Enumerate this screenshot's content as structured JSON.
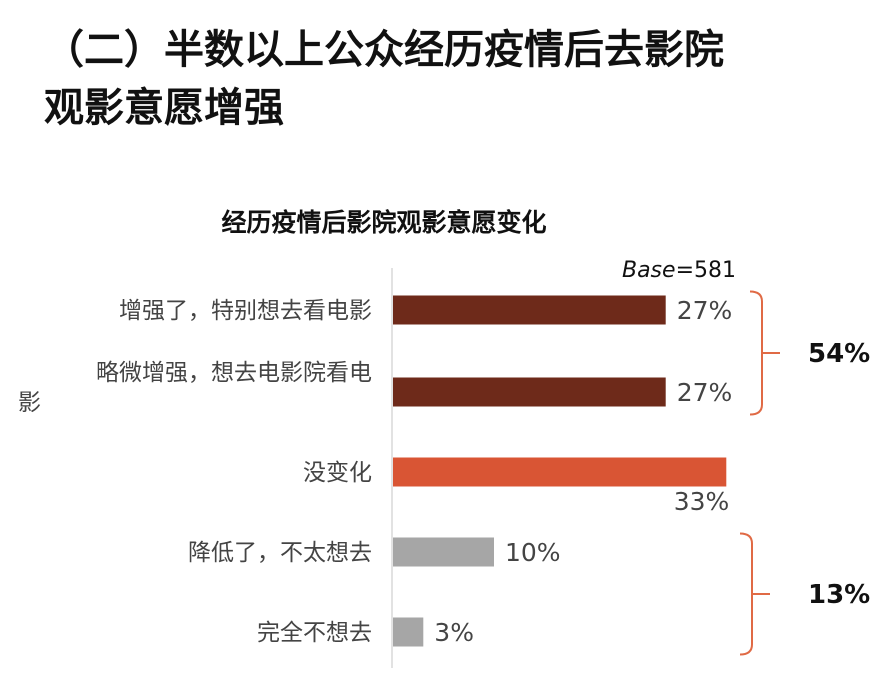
{
  "heading": {
    "line1": "（二）半数以上公众经历疫情后去影院",
    "line2": "观影意愿增强"
  },
  "colors": {
    "dark_red": "#6E2A1A",
    "orange": "#D95534",
    "grey": "#A6A6A6",
    "bracket": "#E06A45",
    "axis": "#D9D9D9"
  },
  "chart_data": {
    "type": "bar",
    "orientation": "horizontal",
    "title": "经历疫情后影院观影意愿变化",
    "base": {
      "label": "Base",
      "value": "=581"
    },
    "xlim": [
      0,
      40
    ],
    "categories": [
      [
        "增强了，特别想去看电影"
      ],
      [
        "略微增强，想去电影院看电",
        "影"
      ],
      [
        "没变化"
      ],
      [
        "降低了，不太想去"
      ],
      [
        "完全不想去"
      ]
    ],
    "values": [
      27,
      27,
      33,
      10,
      3
    ],
    "value_labels": [
      "27%",
      "27%",
      "33%",
      "10%",
      "3%"
    ],
    "bar_colors": [
      "#6E2A1A",
      "#6E2A1A",
      "#D95534",
      "#A6A6A6",
      "#A6A6A6"
    ],
    "groups": [
      {
        "label": "54%",
        "from": 0,
        "to": 1
      },
      {
        "label": "13%",
        "from": 3,
        "to": 4
      }
    ]
  }
}
